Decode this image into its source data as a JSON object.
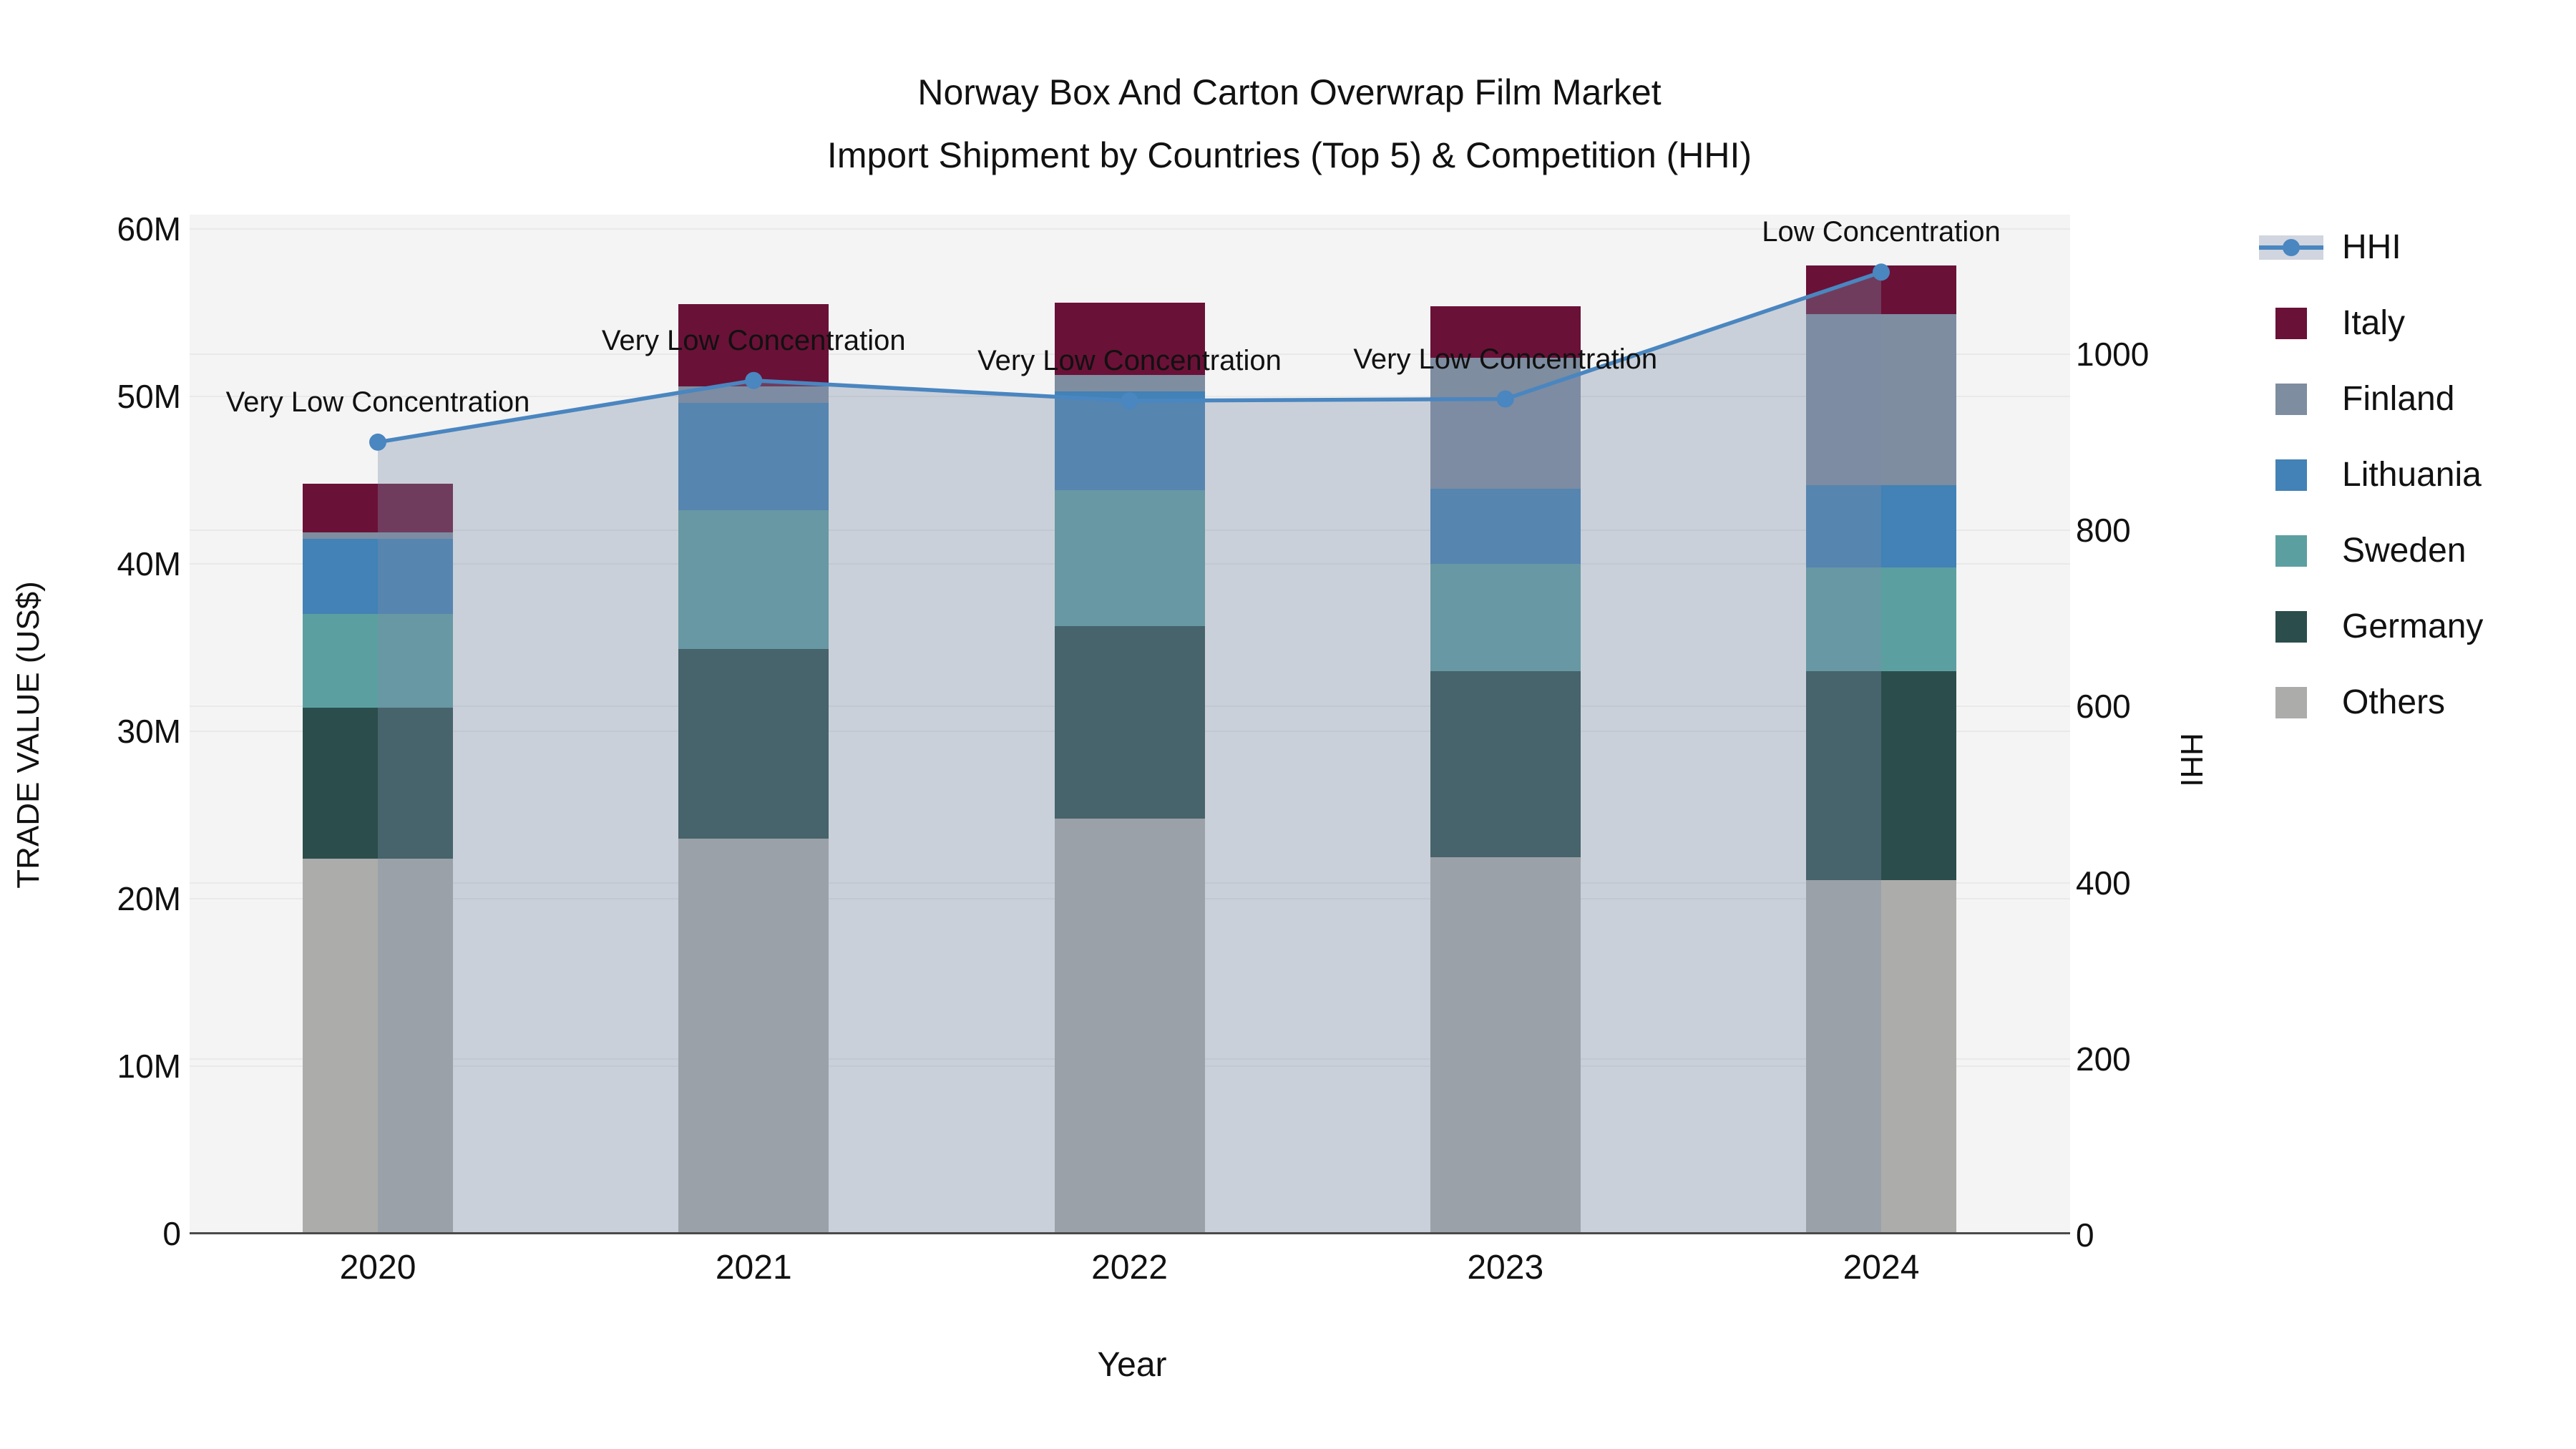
{
  "title": {
    "line1": "Norway Box And Carton Overwrap Film Market",
    "line2": "Import Shipment by Countries (Top 5) & Competition (HHI)"
  },
  "colors": {
    "Italy": "#6A1137",
    "Finland": "#7E8DA0",
    "Lithuania": "#4282B6",
    "Sweden": "#5C9FA1",
    "Germany": "#2B4E4C",
    "Others": "#ACACAA",
    "hhi_line": "#4A86C0",
    "hhi_area_fill": "rgba(122,139,166,0.35)",
    "plot_background": "#F4F4F4",
    "gridline": "#E9E9E9",
    "text": "#111111"
  },
  "legend": {
    "items": [
      {
        "label": "HHI",
        "type": "line"
      },
      {
        "label": "Italy",
        "type": "swatch"
      },
      {
        "label": "Finland",
        "type": "swatch"
      },
      {
        "label": "Lithuania",
        "type": "swatch"
      },
      {
        "label": "Sweden",
        "type": "swatch"
      },
      {
        "label": "Germany",
        "type": "swatch"
      },
      {
        "label": "Others",
        "type": "swatch"
      }
    ]
  },
  "chart_data": {
    "type": "combo: stacked bar (left axis) + line with markers (right axis) + area fill under line",
    "categories": [
      "2020",
      "2021",
      "2022",
      "2023",
      "2024"
    ],
    "unit": "million US$",
    "series": [
      {
        "name": "Others",
        "values": [
          22.4,
          23.6,
          24.8,
          22.5,
          21.1
        ]
      },
      {
        "name": "Germany",
        "values": [
          9.0,
          11.3,
          11.5,
          11.1,
          12.5
        ]
      },
      {
        "name": "Sweden",
        "values": [
          5.6,
          8.3,
          8.1,
          6.4,
          6.2
        ]
      },
      {
        "name": "Lithuania",
        "values": [
          4.5,
          6.4,
          5.9,
          4.5,
          4.9
        ]
      },
      {
        "name": "Finland",
        "values": [
          0.4,
          1.0,
          1.0,
          7.8,
          10.2
        ]
      },
      {
        "name": "Italy",
        "values": [
          2.9,
          4.9,
          4.3,
          3.1,
          2.9
        ]
      }
    ],
    "bar_totals": [
      44.8,
      55.5,
      55.6,
      55.4,
      57.8
    ],
    "line": {
      "name": "HHI",
      "axis": "right",
      "values": [
        900,
        970,
        947,
        949,
        1093
      ]
    },
    "annotations": [
      "Very Low Concentration",
      "Very Low Concentration",
      "Very Low Concentration",
      "Very Low Concentration",
      "Low Concentration"
    ],
    "xlabel": "Year",
    "ylabel_left": "TRADE VALUE (US$)",
    "ylabel_right": "HHI",
    "y_left": {
      "tick_labels": [
        "0",
        "10M",
        "20M",
        "30M",
        "40M",
        "50M",
        "60M"
      ],
      "tick_values": [
        0,
        10,
        20,
        30,
        40,
        50,
        60
      ],
      "lim": [
        0,
        60.85
      ]
    },
    "y_right": {
      "tick_labels": [
        "0",
        "200",
        "400",
        "600",
        "800",
        "1000"
      ],
      "tick_values": [
        0,
        200,
        400,
        600,
        800,
        1000
      ],
      "lim": [
        0,
        1158
      ]
    },
    "grid": true,
    "legend_position": "right"
  }
}
